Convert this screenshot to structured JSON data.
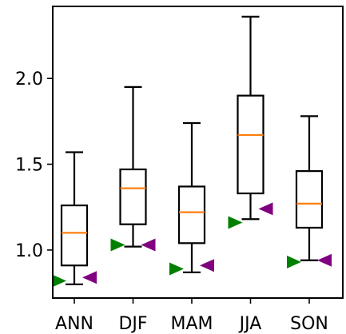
{
  "chart_data": {
    "type": "box",
    "categories": [
      "ANN",
      "DJF",
      "MAM",
      "JJA",
      "SON"
    ],
    "ylim": [
      0.72,
      2.42
    ],
    "yticks": [
      1.0,
      1.5,
      2.0
    ],
    "ytick_labels": [
      "1.0",
      "1.5",
      "2.0"
    ],
    "boxes": [
      {
        "category": "ANN",
        "whislo": 0.8,
        "q1": 0.91,
        "med": 1.1,
        "q3": 1.26,
        "whishi": 1.57
      },
      {
        "category": "DJF",
        "whislo": 1.02,
        "q1": 1.15,
        "med": 1.36,
        "q3": 1.47,
        "whishi": 1.95
      },
      {
        "category": "MAM",
        "whislo": 0.87,
        "q1": 1.04,
        "med": 1.22,
        "q3": 1.37,
        "whishi": 1.74
      },
      {
        "category": "JJA",
        "whislo": 1.18,
        "q1": 1.33,
        "med": 1.67,
        "q3": 1.9,
        "whishi": 2.36
      },
      {
        "category": "SON",
        "whislo": 0.94,
        "q1": 1.13,
        "med": 1.27,
        "q3": 1.46,
        "whishi": 1.78
      }
    ],
    "markers": [
      {
        "marker": "right-triangle",
        "color": "#008000",
        "values": [
          0.82,
          1.03,
          0.89,
          1.16,
          0.93
        ]
      },
      {
        "marker": "left-triangle",
        "color": "#800080",
        "values": [
          0.84,
          1.03,
          0.91,
          1.24,
          0.94
        ]
      }
    ],
    "median_color": "#ff7f0e",
    "grid": false,
    "legend": "none"
  }
}
